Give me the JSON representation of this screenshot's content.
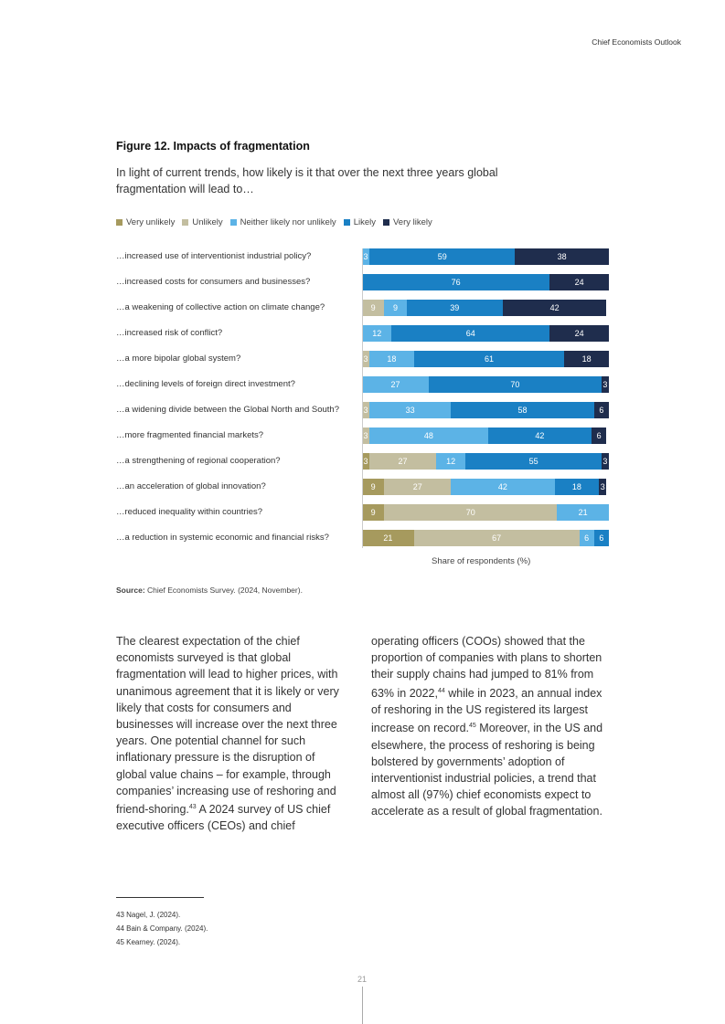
{
  "header": "Chief Economists Outlook",
  "figure": {
    "title": "Figure 12. Impacts of fragmentation",
    "subtitle": "In light of current trends, how likely is it that over the next three years global fragmentation will lead to…"
  },
  "chart_data": {
    "type": "bar",
    "stacked": true,
    "orientation": "horizontal",
    "xlabel": "Share of respondents (%)",
    "xlim": [
      0,
      100
    ],
    "legend_position": "top-left",
    "series": [
      {
        "name": "Very unlikely",
        "color": "#a69a5e",
        "values": [
          0,
          0,
          0,
          0,
          0,
          0,
          0,
          0,
          3,
          9,
          9,
          21
        ]
      },
      {
        "name": "Unlikely",
        "color": "#c3bea0",
        "values": [
          0,
          0,
          9,
          0,
          3,
          0,
          3,
          3,
          27,
          27,
          70,
          67
        ]
      },
      {
        "name": "Neither likely nor unlikely",
        "color": "#5cb3e6",
        "values": [
          3,
          0,
          9,
          12,
          18,
          27,
          33,
          48,
          12,
          42,
          21,
          6
        ]
      },
      {
        "name": "Likely",
        "color": "#1a80c4",
        "values": [
          59,
          76,
          39,
          64,
          61,
          70,
          58,
          42,
          55,
          18,
          0,
          6
        ]
      },
      {
        "name": "Very likely",
        "color": "#1f2d4d",
        "values": [
          38,
          24,
          42,
          24,
          18,
          3,
          6,
          6,
          3,
          3,
          0,
          0
        ]
      }
    ],
    "categories": [
      "…increased use of interventionist industrial policy?",
      "…increased costs for consumers and businesses?",
      "…a weakening of collective action on climate change?",
      "…increased risk of conflict?",
      "…a more bipolar global system?",
      "…declining levels of foreign direct investment?",
      "…a widening divide between the Global North and South?",
      "…more fragmented financial markets?",
      "…a strengthening of regional cooperation?",
      "…an acceleration of global innovation?",
      "…reduced inequality within countries?",
      "…a reduction in systemic economic and financial risks?"
    ]
  },
  "source": {
    "label": "Source:",
    "text": " Chief Economists Survey. (2024, November)."
  },
  "body": {
    "col1": [
      "The clearest expectation of the chief economists surveyed is that global fragmentation will lead to higher prices, with unanimous agreement that it is likely or very likely that costs for consumers and businesses will increase over the next three years. One potential channel for such inflationary pressure is the disruption of global value chains – for example, through companies’ increasing use of reshoring and friend-shoring.",
      "43",
      " A 2024 survey of US chief executive officers (CEOs) and chief"
    ],
    "col2": [
      "operating officers (COOs) showed that the proportion of companies with plans to shorten their supply chains had jumped to 81% from 63% in 2022,",
      "44",
      " while in 2023, an annual index of reshoring in the US registered its largest increase on record.",
      "45",
      " Moreover, in the US and elsewhere, the process of reshoring is being bolstered by governments’ adoption of interventionist industrial policies, a trend that almost all (97%) chief economists expect to accelerate as a result of global fragmentation."
    ]
  },
  "footnotes": [
    "43  Nagel, J. (2024).",
    "44  Bain & Company. (2024).",
    "45  Kearney. (2024)."
  ],
  "page_number": "21"
}
